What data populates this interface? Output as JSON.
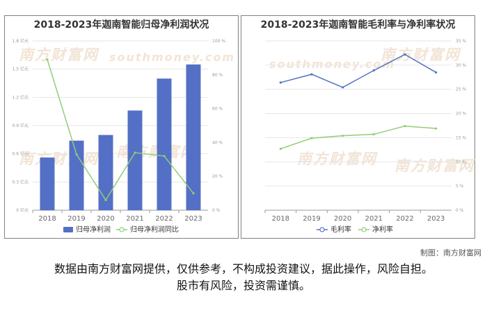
{
  "credit": "制图：南方财富网",
  "disclaimer": {
    "line1": "数据由南方财富网提供，仅供参考，不构成投资建议，据此操作，风险自担。",
    "line2": "股市有风险，投资需谨慎。"
  },
  "watermark": {
    "cn": "南方财富网",
    "en": "southmoney.com"
  },
  "chart_data": [
    {
      "type": "bar",
      "title": "2018-2023年迦南智能归母净利润状况",
      "categories": [
        "2018",
        "2019",
        "2020",
        "2021",
        "2022",
        "2023"
      ],
      "series": [
        {
          "name": "归母净利润",
          "type": "bar",
          "axis": "left",
          "color": "#5470c6",
          "values": [
            0.56,
            0.74,
            0.8,
            1.06,
            1.4,
            1.55
          ]
        },
        {
          "name": "归母净利润同比",
          "type": "line",
          "axis": "right",
          "color": "#91cc75",
          "values": [
            89,
            33,
            6,
            34,
            32,
            10
          ]
        }
      ],
      "y_left": {
        "min": 0,
        "max": 1.8,
        "ticks": [
          "0 亿元",
          "0.3 亿元",
          "0.6 亿元",
          "0.9 亿元",
          "1.2 亿元",
          "1.5 亿元",
          "1.8 亿元"
        ]
      },
      "y_right": {
        "min": 0,
        "max": 100,
        "ticks": [
          "0 %",
          "20 %",
          "40 %",
          "60 %",
          "80 %",
          "100 %"
        ]
      },
      "legend": "bottom",
      "grid": true
    },
    {
      "type": "line",
      "title": "2018-2023年迦南智能毛利率与净利率状况",
      "categories": [
        "2018",
        "2019",
        "2020",
        "2021",
        "2022",
        "2023"
      ],
      "series": [
        {
          "name": "毛利率",
          "color": "#5470c6",
          "values": [
            26.4,
            28.1,
            25.4,
            28.9,
            32.2,
            28.5
          ]
        },
        {
          "name": "净利率",
          "color": "#91cc75",
          "values": [
            12.7,
            14.9,
            15.4,
            15.7,
            17.4,
            16.9
          ]
        }
      ],
      "y_right": {
        "min": 0,
        "max": 35,
        "ticks": [
          "0 %",
          "5 %",
          "10 %",
          "15 %",
          "20 %",
          "25 %",
          "30 %",
          "35 %"
        ]
      },
      "legend": "bottom",
      "grid": true
    }
  ]
}
